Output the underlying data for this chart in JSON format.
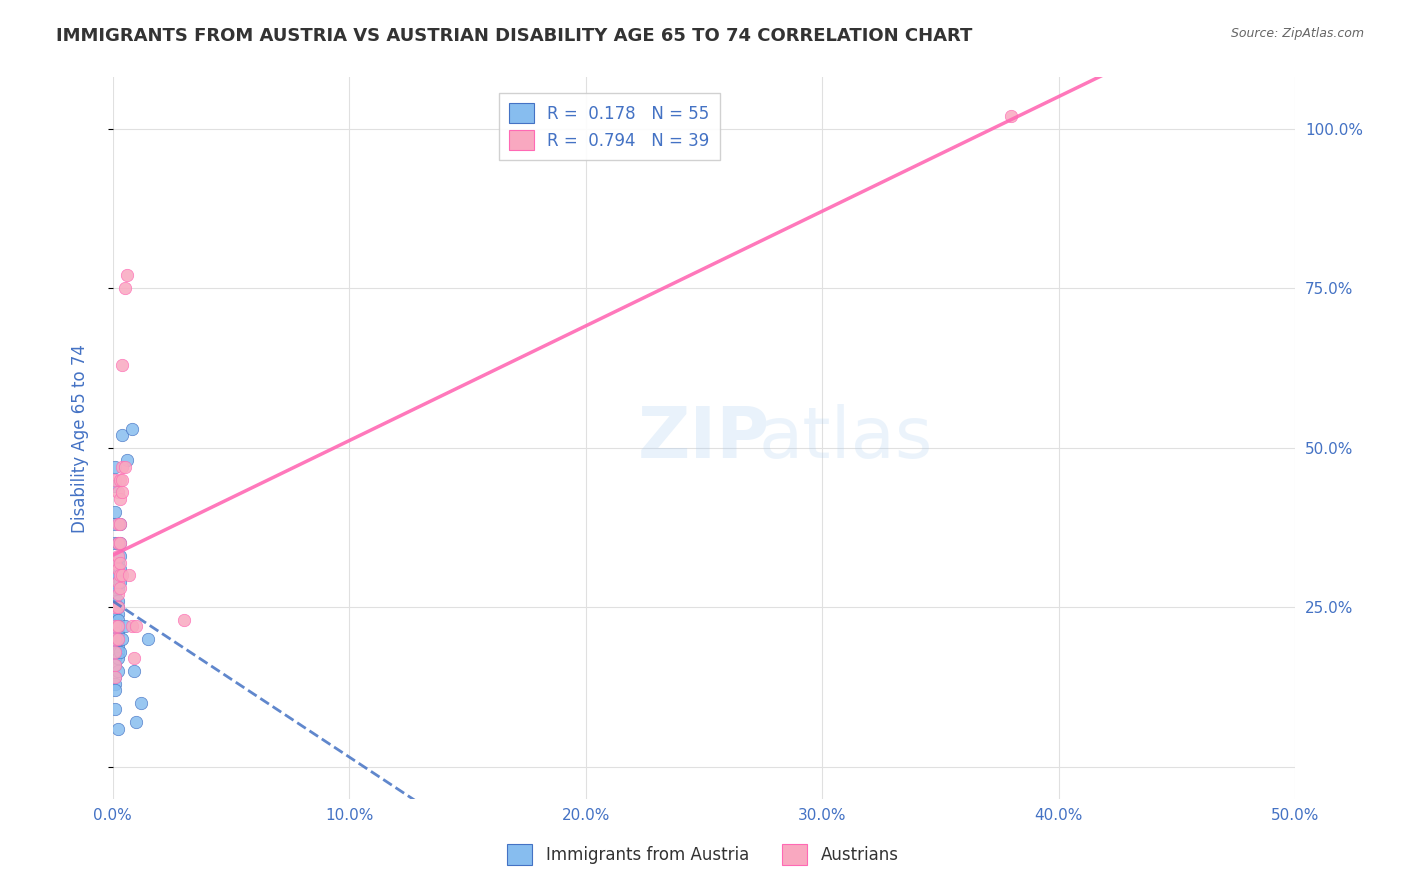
{
  "title": "IMMIGRANTS FROM AUSTRIA VS AUSTRIAN DISABILITY AGE 65 TO 74 CORRELATION CHART",
  "source": "Source: ZipAtlas.com",
  "xlabel": "",
  "ylabel": "Disability Age 65 to 74",
  "xlim": [
    0.0,
    0.5
  ],
  "ylim": [
    0.0,
    1.05
  ],
  "x_ticks": [
    0.0,
    0.1,
    0.2,
    0.3,
    0.4,
    0.5
  ],
  "x_tick_labels": [
    "0.0%",
    "10.0%",
    "20.0%",
    "30.0%",
    "40.0%",
    "50.0%"
  ],
  "y_ticks": [
    0.0,
    0.25,
    0.5,
    0.75,
    1.0
  ],
  "y_tick_labels": [
    "",
    "25.0%",
    "50.0%",
    "75.0%",
    "100.0%"
  ],
  "blue_R": 0.178,
  "blue_N": 55,
  "pink_R": 0.794,
  "pink_N": 39,
  "watermark": "ZIPatlas",
  "legend_blue_label": "Immigrants from Austria",
  "legend_pink_label": "Austrians",
  "blue_scatter": [
    [
      0.001,
      0.47
    ],
    [
      0.001,
      0.44
    ],
    [
      0.001,
      0.4
    ],
    [
      0.001,
      0.38
    ],
    [
      0.001,
      0.35
    ],
    [
      0.001,
      0.32
    ],
    [
      0.001,
      0.3
    ],
    [
      0.001,
      0.28
    ],
    [
      0.001,
      0.27
    ],
    [
      0.001,
      0.26
    ],
    [
      0.001,
      0.25
    ],
    [
      0.001,
      0.24
    ],
    [
      0.001,
      0.23
    ],
    [
      0.001,
      0.22
    ],
    [
      0.001,
      0.21
    ],
    [
      0.001,
      0.2
    ],
    [
      0.001,
      0.19
    ],
    [
      0.001,
      0.18
    ],
    [
      0.001,
      0.17
    ],
    [
      0.001,
      0.16
    ],
    [
      0.001,
      0.14
    ],
    [
      0.001,
      0.13
    ],
    [
      0.001,
      0.12
    ],
    [
      0.001,
      0.09
    ],
    [
      0.002,
      0.35
    ],
    [
      0.002,
      0.32
    ],
    [
      0.002,
      0.3
    ],
    [
      0.002,
      0.28
    ],
    [
      0.002,
      0.26
    ],
    [
      0.002,
      0.25
    ],
    [
      0.002,
      0.24
    ],
    [
      0.002,
      0.23
    ],
    [
      0.002,
      0.22
    ],
    [
      0.002,
      0.21
    ],
    [
      0.002,
      0.2
    ],
    [
      0.002,
      0.19
    ],
    [
      0.002,
      0.18
    ],
    [
      0.002,
      0.17
    ],
    [
      0.002,
      0.15
    ],
    [
      0.002,
      0.06
    ],
    [
      0.003,
      0.38
    ],
    [
      0.003,
      0.35
    ],
    [
      0.003,
      0.33
    ],
    [
      0.003,
      0.31
    ],
    [
      0.003,
      0.29
    ],
    [
      0.003,
      0.18
    ],
    [
      0.004,
      0.52
    ],
    [
      0.004,
      0.2
    ],
    [
      0.005,
      0.22
    ],
    [
      0.006,
      0.48
    ],
    [
      0.008,
      0.53
    ],
    [
      0.009,
      0.15
    ],
    [
      0.01,
      0.07
    ],
    [
      0.012,
      0.1
    ],
    [
      0.015,
      0.2
    ]
  ],
  "pink_scatter": [
    [
      0.001,
      0.45
    ],
    [
      0.001,
      0.32
    ],
    [
      0.001,
      0.25
    ],
    [
      0.001,
      0.22
    ],
    [
      0.001,
      0.2
    ],
    [
      0.001,
      0.18
    ],
    [
      0.001,
      0.16
    ],
    [
      0.001,
      0.14
    ],
    [
      0.002,
      0.43
    ],
    [
      0.002,
      0.38
    ],
    [
      0.002,
      0.35
    ],
    [
      0.002,
      0.33
    ],
    [
      0.002,
      0.31
    ],
    [
      0.002,
      0.29
    ],
    [
      0.002,
      0.27
    ],
    [
      0.002,
      0.25
    ],
    [
      0.002,
      0.22
    ],
    [
      0.002,
      0.2
    ],
    [
      0.003,
      0.45
    ],
    [
      0.003,
      0.42
    ],
    [
      0.003,
      0.38
    ],
    [
      0.003,
      0.35
    ],
    [
      0.003,
      0.32
    ],
    [
      0.003,
      0.3
    ],
    [
      0.003,
      0.28
    ],
    [
      0.004,
      0.63
    ],
    [
      0.004,
      0.47
    ],
    [
      0.004,
      0.45
    ],
    [
      0.004,
      0.43
    ],
    [
      0.004,
      0.3
    ],
    [
      0.005,
      0.75
    ],
    [
      0.005,
      0.47
    ],
    [
      0.006,
      0.77
    ],
    [
      0.007,
      0.3
    ],
    [
      0.008,
      0.22
    ],
    [
      0.009,
      0.17
    ],
    [
      0.01,
      0.22
    ],
    [
      0.03,
      0.23
    ],
    [
      0.38,
      1.02
    ]
  ],
  "blue_color": "#87BDEF",
  "pink_color": "#F9A8C0",
  "blue_line_color": "#4472C4",
  "pink_line_color": "#FF69B4",
  "grid_color": "#E0E0E0",
  "background_color": "#FFFFFF",
  "title_color": "#333333",
  "axis_label_color": "#4472C4",
  "watermark_color_zip": "#87BDEF",
  "watermark_color_atlas": "#87BDEF"
}
